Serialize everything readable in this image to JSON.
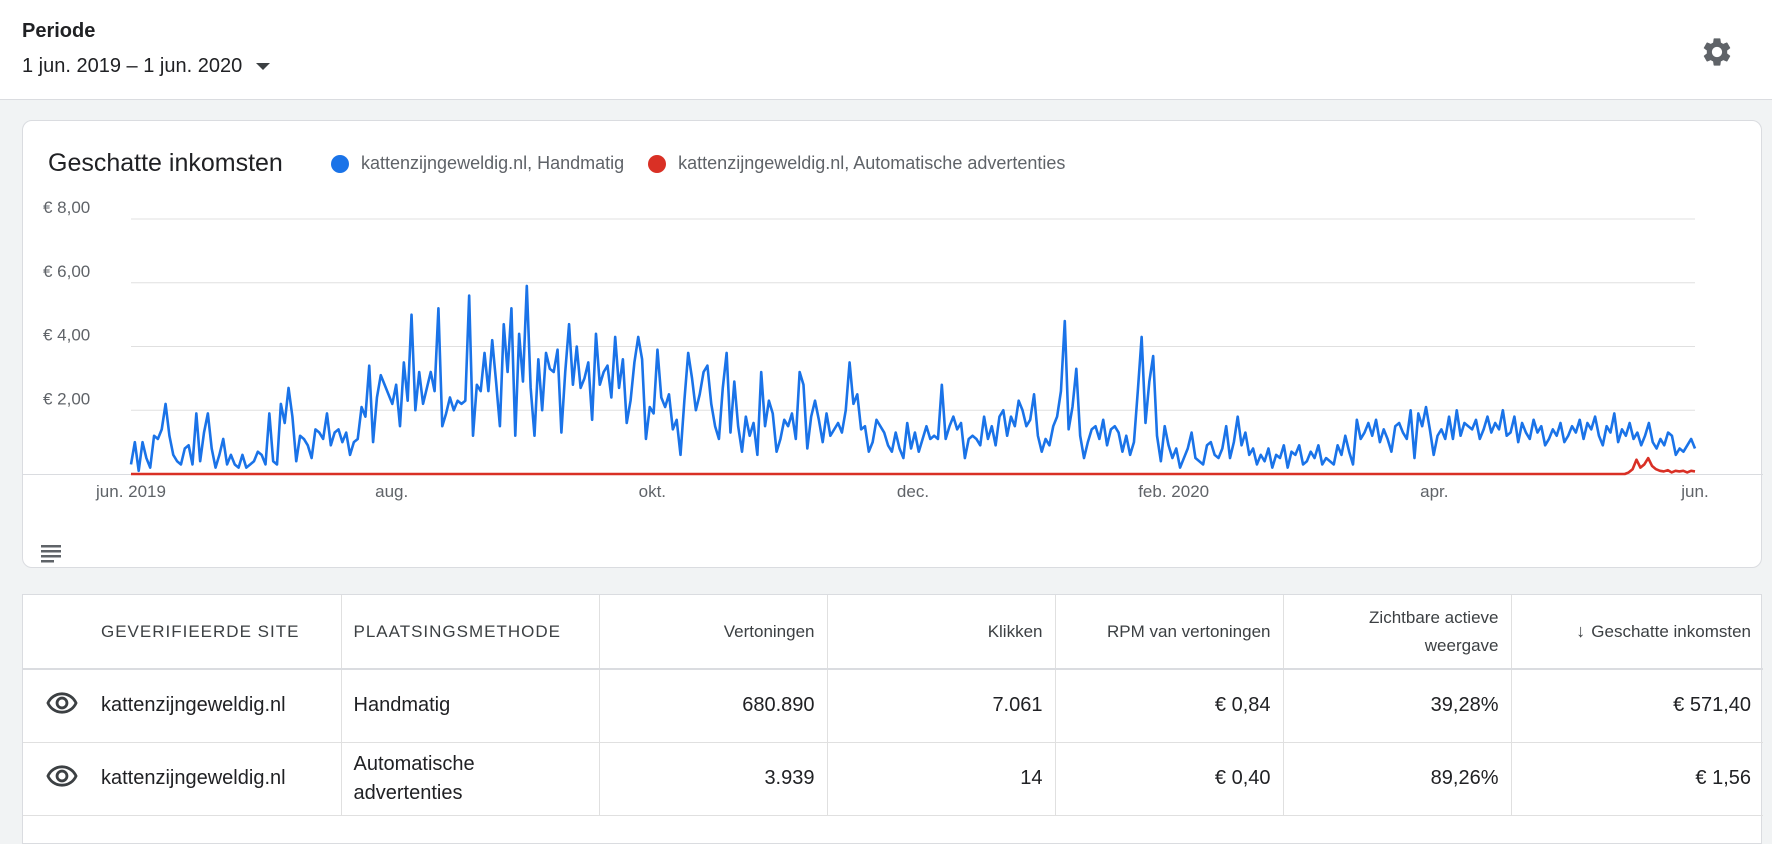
{
  "header": {
    "period_label": "Periode",
    "period_value": "1 jun. 2019 – 1 jun. 2020"
  },
  "chart_data": {
    "type": "line",
    "title": "Geschatte inkomsten",
    "x_ticks": [
      "jun. 2019",
      "aug.",
      "okt.",
      "dec.",
      "feb. 2020",
      "apr.",
      "jun."
    ],
    "y_ticks": [
      "€ 8,00",
      "€ 6,00",
      "€ 4,00",
      "€ 2,00"
    ],
    "ylim": [
      0,
      8
    ],
    "grid": true,
    "legend_position": "top",
    "series": [
      {
        "name": "kattenzijngeweldig.nl, Handmatig",
        "color": "#1a73e8",
        "values": [
          0.3,
          1.0,
          0.1,
          1.0,
          0.5,
          0.2,
          1.2,
          1.1,
          1.4,
          2.2,
          1.2,
          0.6,
          0.4,
          0.3,
          0.8,
          0.9,
          0.3,
          1.9,
          0.4,
          1.3,
          1.9,
          0.8,
          0.2,
          0.6,
          1.1,
          0.3,
          0.6,
          0.3,
          0.2,
          0.6,
          0.2,
          0.3,
          0.4,
          0.7,
          0.6,
          0.3,
          1.9,
          0.4,
          0.3,
          2.2,
          1.6,
          2.7,
          1.8,
          0.4,
          1.2,
          1.1,
          0.9,
          0.5,
          1.4,
          1.3,
          1.1,
          1.9,
          0.9,
          1.3,
          1.4,
          1.0,
          1.3,
          0.6,
          1.0,
          1.1,
          2.1,
          1.8,
          3.4,
          1.0,
          2.4,
          3.1,
          2.8,
          2.5,
          2.2,
          2.8,
          1.5,
          3.5,
          2.3,
          5.0,
          2.0,
          3.2,
          2.2,
          2.7,
          3.2,
          2.6,
          5.2,
          1.5,
          1.9,
          2.4,
          2.0,
          2.3,
          2.2,
          2.3,
          5.6,
          1.2,
          2.8,
          2.6,
          3.8,
          2.6,
          4.2,
          2.9,
          1.5,
          4.7,
          3.2,
          5.2,
          1.2,
          4.4,
          2.9,
          5.9,
          2.7,
          1.2,
          3.6,
          2.0,
          3.8,
          3.3,
          3.2,
          3.9,
          1.3,
          3.2,
          4.7,
          2.8,
          4.0,
          2.7,
          3.0,
          3.5,
          1.7,
          4.4,
          2.8,
          3.2,
          3.4,
          2.4,
          4.3,
          2.7,
          3.6,
          1.6,
          2.3,
          3.5,
          4.3,
          3.6,
          1.1,
          2.1,
          1.9,
          3.9,
          2.4,
          2.1,
          2.5,
          1.4,
          1.7,
          0.6,
          2.3,
          3.8,
          3.0,
          2.0,
          2.5,
          3.2,
          3.4,
          2.2,
          1.5,
          1.1,
          2.7,
          3.8,
          1.3,
          2.9,
          1.5,
          0.7,
          1.8,
          1.2,
          1.6,
          0.6,
          3.2,
          1.5,
          2.3,
          1.9,
          0.7,
          1.1,
          1.7,
          1.5,
          1.9,
          1.1,
          3.2,
          2.8,
          0.8,
          1.8,
          2.3,
          1.7,
          1.0,
          1.9,
          1.2,
          1.4,
          1.6,
          1.3,
          2.0,
          3.5,
          2.2,
          2.5,
          1.4,
          1.5,
          0.7,
          1.0,
          1.7,
          1.5,
          1.3,
          0.9,
          0.7,
          1.3,
          0.8,
          0.5,
          1.6,
          0.8,
          1.3,
          0.7,
          1.1,
          1.5,
          1.1,
          1.2,
          1.1,
          2.8,
          1.1,
          1.5,
          1.8,
          1.4,
          1.6,
          0.5,
          1.1,
          1.2,
          1.1,
          0.9,
          1.8,
          1.1,
          1.5,
          0.9,
          1.8,
          2.0,
          1.2,
          1.8,
          1.5,
          2.3,
          2.0,
          1.5,
          1.7,
          2.5,
          1.2,
          0.7,
          1.1,
          0.9,
          1.5,
          1.8,
          2.6,
          4.8,
          1.4,
          2.1,
          3.3,
          1.2,
          0.5,
          1.0,
          1.4,
          1.5,
          1.1,
          1.7,
          0.9,
          1.4,
          1.5,
          1.3,
          0.7,
          1.2,
          0.6,
          1.0,
          2.6,
          4.3,
          1.6,
          2.9,
          3.7,
          1.2,
          0.4,
          1.5,
          0.9,
          0.5,
          0.8,
          0.2,
          0.5,
          0.8,
          1.3,
          0.5,
          0.4,
          0.3,
          0.9,
          1.0,
          0.6,
          0.5,
          0.8,
          1.5,
          0.5,
          1.0,
          1.8,
          0.9,
          1.3,
          0.6,
          0.8,
          0.3,
          0.6,
          0.4,
          0.8,
          0.2,
          0.6,
          0.5,
          0.9,
          0.2,
          0.7,
          0.6,
          0.9,
          0.3,
          0.4,
          0.7,
          0.5,
          0.9,
          0.3,
          0.5,
          0.4,
          0.3,
          0.9,
          0.6,
          1.2,
          0.7,
          0.3,
          1.7,
          1.1,
          1.3,
          1.6,
          1.2,
          1.7,
          1.0,
          1.4,
          1.1,
          0.7,
          1.5,
          1.6,
          1.3,
          1.1,
          2.0,
          0.5,
          1.9,
          1.5,
          2.1,
          1.4,
          0.6,
          1.2,
          1.4,
          1.1,
          1.8,
          1.1,
          2.0,
          1.2,
          1.6,
          1.5,
          1.4,
          1.7,
          1.1,
          1.4,
          1.8,
          1.3,
          1.6,
          1.4,
          2.0,
          1.2,
          1.3,
          1.8,
          1.0,
          1.6,
          1.3,
          1.1,
          1.7,
          1.3,
          1.5,
          0.9,
          1.1,
          1.4,
          1.2,
          1.6,
          1.0,
          1.2,
          1.5,
          1.3,
          1.7,
          1.1,
          1.6,
          1.4,
          1.8,
          1.2,
          0.9,
          1.5,
          1.3,
          1.9,
          1.0,
          1.4,
          1.2,
          1.6,
          1.1,
          1.3,
          0.9,
          1.2,
          1.6,
          1.0,
          0.8,
          1.1,
          0.9,
          1.3,
          1.2,
          0.6,
          0.8,
          0.7,
          0.9,
          1.1,
          0.8
        ]
      },
      {
        "name": "kattenzijngeweldig.nl, Automatische advertenties",
        "color": "#d93025",
        "values": [
          0,
          0,
          0,
          0,
          0,
          0,
          0,
          0,
          0,
          0,
          0,
          0,
          0,
          0,
          0,
          0,
          0,
          0,
          0,
          0,
          0,
          0,
          0,
          0,
          0,
          0,
          0,
          0,
          0,
          0,
          0,
          0,
          0,
          0,
          0,
          0,
          0,
          0,
          0,
          0,
          0,
          0,
          0,
          0,
          0,
          0,
          0,
          0,
          0,
          0,
          0,
          0,
          0,
          0,
          0,
          0,
          0,
          0,
          0,
          0,
          0,
          0,
          0,
          0,
          0,
          0,
          0,
          0,
          0,
          0,
          0,
          0,
          0,
          0,
          0,
          0,
          0,
          0,
          0,
          0,
          0,
          0,
          0,
          0,
          0,
          0,
          0,
          0,
          0,
          0,
          0,
          0,
          0,
          0,
          0,
          0,
          0,
          0,
          0,
          0,
          0,
          0,
          0,
          0,
          0,
          0,
          0,
          0,
          0,
          0,
          0,
          0,
          0,
          0,
          0,
          0,
          0,
          0,
          0,
          0,
          0,
          0,
          0,
          0,
          0,
          0,
          0,
          0,
          0,
          0,
          0,
          0,
          0,
          0,
          0,
          0,
          0,
          0,
          0,
          0,
          0,
          0,
          0,
          0,
          0,
          0,
          0,
          0,
          0,
          0,
          0,
          0,
          0,
          0,
          0,
          0,
          0,
          0,
          0,
          0,
          0,
          0,
          0,
          0,
          0,
          0,
          0,
          0,
          0,
          0,
          0,
          0,
          0,
          0,
          0,
          0,
          0,
          0,
          0,
          0,
          0,
          0,
          0,
          0,
          0,
          0,
          0,
          0,
          0,
          0,
          0,
          0,
          0,
          0,
          0,
          0,
          0,
          0,
          0,
          0,
          0,
          0,
          0,
          0,
          0,
          0,
          0,
          0,
          0,
          0,
          0,
          0,
          0,
          0,
          0,
          0,
          0,
          0,
          0,
          0,
          0,
          0,
          0,
          0,
          0,
          0,
          0,
          0,
          0,
          0,
          0,
          0,
          0,
          0,
          0,
          0,
          0,
          0,
          0,
          0,
          0,
          0,
          0,
          0,
          0,
          0,
          0,
          0,
          0,
          0,
          0,
          0,
          0,
          0,
          0,
          0,
          0,
          0,
          0,
          0,
          0,
          0,
          0,
          0,
          0,
          0,
          0,
          0,
          0,
          0,
          0,
          0,
          0,
          0,
          0,
          0,
          0,
          0,
          0,
          0,
          0,
          0,
          0,
          0,
          0,
          0,
          0,
          0,
          0,
          0,
          0,
          0,
          0,
          0,
          0,
          0,
          0,
          0,
          0,
          0,
          0,
          0,
          0,
          0,
          0,
          0,
          0,
          0,
          0,
          0,
          0,
          0,
          0,
          0,
          0,
          0,
          0,
          0,
          0,
          0,
          0,
          0,
          0,
          0,
          0,
          0,
          0,
          0,
          0,
          0,
          0,
          0,
          0,
          0,
          0,
          0,
          0,
          0,
          0,
          0,
          0,
          0,
          0,
          0,
          0,
          0,
          0,
          0,
          0,
          0,
          0,
          0,
          0,
          0,
          0,
          0,
          0,
          0,
          0,
          0,
          0,
          0,
          0,
          0,
          0,
          0,
          0,
          0,
          0,
          0,
          0,
          0,
          0,
          0,
          0,
          0,
          0,
          0,
          0,
          0,
          0,
          0,
          0,
          0,
          0.05,
          0.15,
          0.45,
          0.2,
          0.3,
          0.5,
          0.25,
          0.15,
          0.1,
          0.08,
          0.12,
          0.05,
          0.1,
          0.08,
          0.1,
          0.05,
          0.1,
          0.08
        ]
      }
    ]
  },
  "table": {
    "headers": {
      "site": "GEVERIFIEERDE SITE",
      "method": "PLAATSINGSMETHODE",
      "impressions": "Vertoningen",
      "clicks": "Klikken",
      "rpm": "RPM van vertoningen",
      "viewable": "Zichtbare actieve weergave",
      "earnings": "Geschatte inkomsten"
    },
    "rows": [
      {
        "site": "kattenzijngeweldig.nl",
        "method": "Handmatig",
        "impressions": "680.890",
        "clicks": "7.061",
        "rpm": "€ 0,84",
        "viewable": "39,28%",
        "earnings": "€ 571,40"
      },
      {
        "site": "kattenzijngeweldig.nl",
        "method": "Automatische advertenties",
        "impressions": "3.939",
        "clicks": "14",
        "rpm": "€ 0,40",
        "viewable": "89,26%",
        "earnings": "€ 1,56"
      }
    ]
  },
  "icons": {
    "settings": "gear-icon",
    "period_dropdown": "caret-down-icon",
    "chart_table_toggle": "table-view-icon",
    "row_visibility": "eye-icon",
    "sort": "arrow-down-icon"
  }
}
